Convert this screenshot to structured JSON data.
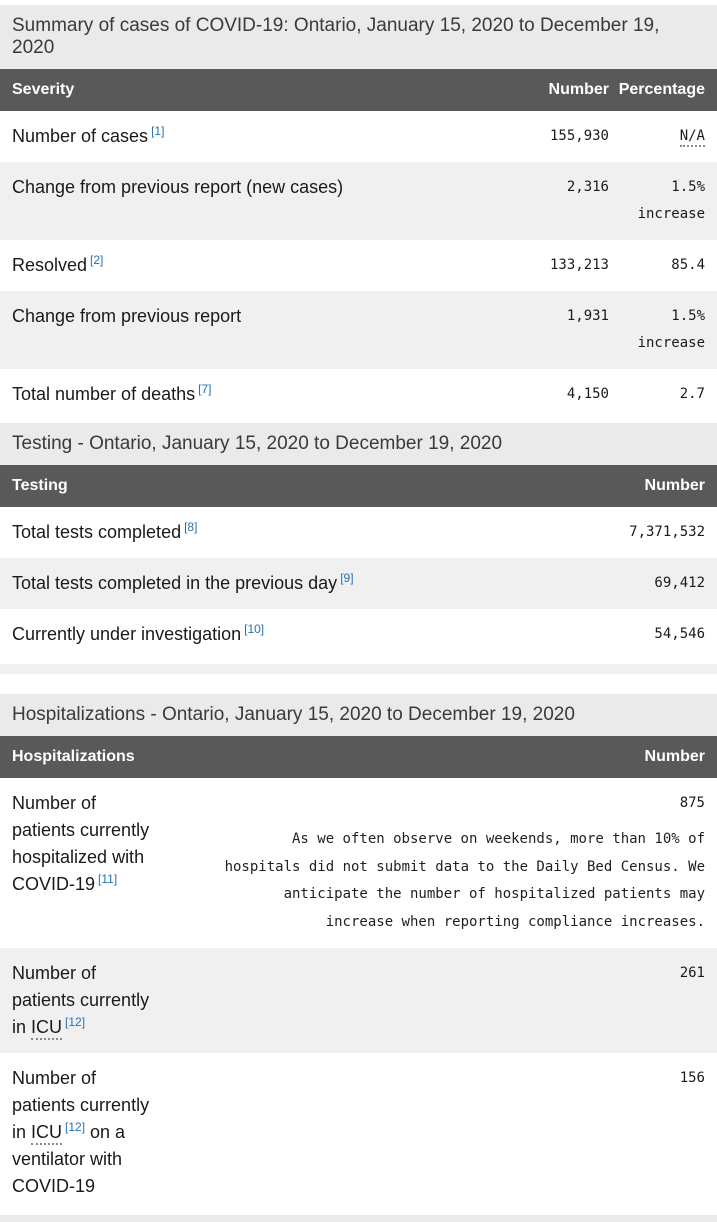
{
  "theme": {
    "header_bg": "#595959",
    "header_text": "#ffffff",
    "caption_bg": "#eaeaea",
    "row_shaded_bg": "#f0f0f0",
    "link_color": "#2572b4"
  },
  "summary": {
    "caption": "Summary of cases of COVID-19: Ontario, January 15, 2020 to December 19, 2020",
    "columns": [
      "Severity",
      "Number",
      "Percentage"
    ],
    "rows": [
      {
        "segments": [
          {
            "text": "Number of cases"
          },
          {
            "sup": "[1]"
          }
        ],
        "number": "155,930",
        "percentage": "N/A",
        "percentage_abbr": true
      },
      {
        "segments": [
          {
            "text": "Change from previous report (new cases)"
          }
        ],
        "number": "2,316",
        "percentage": "1.5% increase"
      },
      {
        "segments": [
          {
            "text": "Resolved"
          },
          {
            "sup": "[2]"
          }
        ],
        "number": "133,213",
        "percentage": "85.4"
      },
      {
        "segments": [
          {
            "text": "Change from previous report"
          }
        ],
        "number": "1,931",
        "percentage": "1.5% increase"
      },
      {
        "segments": [
          {
            "text": "Total number of deaths"
          },
          {
            "sup": "[7]"
          }
        ],
        "number": "4,150",
        "percentage": "2.7"
      }
    ]
  },
  "testing": {
    "caption": "Testing - Ontario, January 15, 2020 to December 19, 2020",
    "columns": [
      "Testing",
      "Number"
    ],
    "rows": [
      {
        "segments": [
          {
            "text": "Total tests completed"
          },
          {
            "sup": "[8]"
          }
        ],
        "number": "7,371,532"
      },
      {
        "segments": [
          {
            "text": "Total tests completed in the previous day"
          },
          {
            "sup": "[9]"
          }
        ],
        "number": "69,412"
      },
      {
        "segments": [
          {
            "text": "Currently under investigation"
          },
          {
            "sup": "[10]"
          }
        ],
        "number": "54,546"
      }
    ]
  },
  "hospitalizations": {
    "caption": "Hospitalizations - Ontario, January 15, 2020 to December 19, 2020",
    "columns": [
      "Hospitalizations",
      "Number"
    ],
    "rows": [
      {
        "segments": [
          {
            "text": "Number of"
          },
          {
            "br": true
          },
          {
            "text": "patients currently"
          },
          {
            "br": true
          },
          {
            "text": "hospitalized with"
          },
          {
            "br": true
          },
          {
            "text": "COVID-19"
          },
          {
            "sup": "[11]"
          }
        ],
        "number": "875",
        "note": "As we often observe on weekends, more than 10% of hospitals did not submit data to the Daily Bed Census. We anticipate the number of hospitalized patients may increase when reporting compliance increases."
      },
      {
        "segments": [
          {
            "text": "Number of"
          },
          {
            "br": true
          },
          {
            "text": "patients currently"
          },
          {
            "br": true
          },
          {
            "text": "in "
          },
          {
            "abbr": "ICU"
          },
          {
            "sup": "[12]"
          }
        ],
        "number": "261"
      },
      {
        "segments": [
          {
            "text": "Number of"
          },
          {
            "br": true
          },
          {
            "text": "patients currently"
          },
          {
            "br": true
          },
          {
            "text": "in "
          },
          {
            "abbr": "ICU"
          },
          {
            "sup": "[12]"
          },
          {
            "text": " on a"
          },
          {
            "br": true
          },
          {
            "text": "ventilator with"
          },
          {
            "br": true
          },
          {
            "text": "COVID-19"
          }
        ],
        "number": "156"
      }
    ]
  }
}
